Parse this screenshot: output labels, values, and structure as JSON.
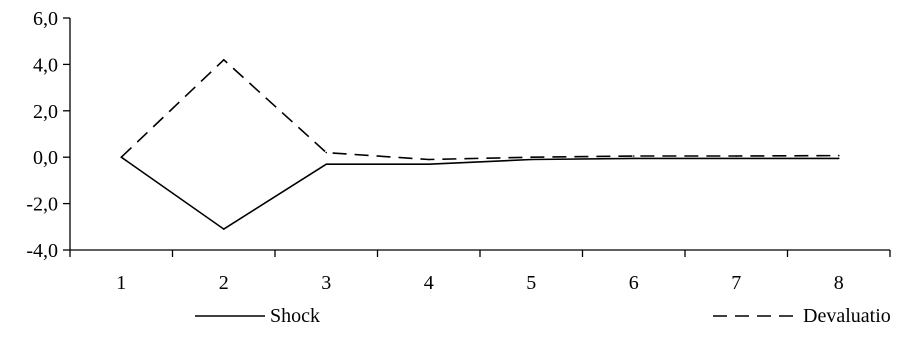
{
  "chart_data": {
    "type": "line",
    "title": "",
    "xlabel": "",
    "ylabel": "",
    "x": [
      1,
      2,
      3,
      4,
      5,
      6,
      7,
      8
    ],
    "x_tick_labels": [
      "1",
      "2",
      "3",
      "4",
      "5",
      "6",
      "7",
      "8"
    ],
    "ylim": [
      -4.0,
      6.0
    ],
    "y_ticks": [
      -4.0,
      -2.0,
      0.0,
      2.0,
      4.0,
      6.0
    ],
    "y_tick_labels": [
      "-4,0",
      "-2,0",
      "0,0",
      "2,0",
      "4,0",
      "6,0"
    ],
    "grid": false,
    "legend_position": "bottom",
    "series": [
      {
        "name": "Shock",
        "style": "solid",
        "color": "#000000",
        "values": [
          0.0,
          -3.1,
          -0.3,
          -0.3,
          -0.1,
          -0.05,
          -0.05,
          -0.05
        ]
      },
      {
        "name": "Devaluatio",
        "style": "dashed",
        "color": "#000000",
        "values": [
          0.0,
          4.2,
          0.2,
          -0.1,
          0.0,
          0.05,
          0.05,
          0.07
        ]
      }
    ]
  }
}
